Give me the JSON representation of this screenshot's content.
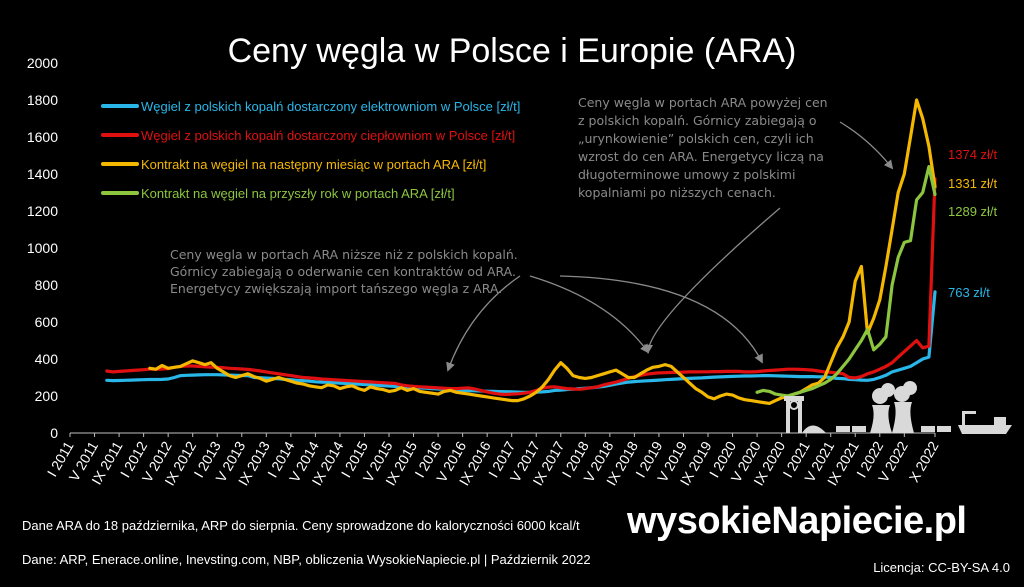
{
  "colors": {
    "background": "#000000",
    "blue": "#29b6e8",
    "red": "#e01010",
    "yellow": "#f5b800",
    "green": "#8cc63f",
    "annotation": "#8a8a8a"
  },
  "chart_data": {
    "type": "line",
    "title": "Ceny węgla w Polsce i Europie (ARA)",
    "xlabel": "",
    "ylabel": "",
    "ylim": [
      0,
      2000
    ],
    "yticks": [
      0,
      200,
      400,
      600,
      800,
      1000,
      1200,
      1400,
      1600,
      1800,
      2000
    ],
    "grid": false,
    "legend_position": "top-left",
    "x_tick_labels": [
      "I 2011",
      "V 2011",
      "IX 2011",
      "I 2012",
      "V 2012",
      "IX 2012",
      "I 2013",
      "V 2013",
      "IX 2013",
      "I 2014",
      "V 2014",
      "IX 2014",
      "I 2015",
      "V 2015",
      "IX 2015",
      "I 2016",
      "V 2016",
      "IX 2016",
      "I 2017",
      "V 2017",
      "IX 2017",
      "I 2018",
      "V 2018",
      "IX 2018",
      "I 2019",
      "V 2019",
      "IX 2019",
      "I 2020",
      "V 2020",
      "IX 2020",
      "I 2021",
      "V 2021",
      "IX 2021",
      "I 2022",
      "V 2022",
      "X 2022"
    ],
    "x_months_start": "2011-01",
    "series": [
      {
        "name": "Węgiel z polskich kopalń dostarczony elektrowniom w Polsce [zł/t]",
        "color": "#29b6e8",
        "end_label": "763 zł/t",
        "values": [
          285,
          283,
          284,
          285,
          286,
          287,
          288,
          289,
          289,
          290,
          292,
          300,
          310,
          312,
          313,
          314,
          315,
          315,
          315,
          314,
          313,
          312,
          311,
          310,
          300,
          299,
          297,
          295,
          293,
          290,
          288,
          285,
          283,
          280,
          277,
          275,
          274,
          272,
          270,
          268,
          266,
          264,
          262,
          260,
          258,
          256,
          254,
          252,
          250,
          248,
          246,
          244,
          242,
          240,
          238,
          236,
          234,
          232,
          230,
          229,
          228,
          227,
          226,
          225,
          224,
          223,
          222,
          221,
          220,
          220,
          221,
          222,
          225,
          230,
          232,
          235,
          237,
          240,
          242,
          245,
          248,
          252,
          258,
          265,
          270,
          275,
          278,
          280,
          282,
          284,
          286,
          288,
          290,
          292,
          294,
          295,
          297,
          298,
          300,
          302,
          303,
          305,
          306,
          307,
          308,
          308,
          309,
          310,
          310,
          309,
          308,
          307,
          306,
          305,
          305,
          305,
          304,
          303,
          300,
          295,
          294,
          290,
          288,
          286,
          285,
          290,
          300,
          312,
          330,
          340,
          350,
          360,
          380,
          400,
          410,
          763
        ]
      },
      {
        "name": "Węgiel z polskich kopalń dostarczony ciepłowniom w Polsce [zł/t]",
        "color": "#e01010",
        "end_label": "1374 zł/t",
        "values": [
          335,
          330,
          333,
          335,
          338,
          340,
          342,
          345,
          345,
          346,
          348,
          355,
          360,
          362,
          362,
          360,
          358,
          356,
          355,
          353,
          350,
          348,
          346,
          344,
          340,
          335,
          330,
          325,
          320,
          315,
          310,
          305,
          300,
          298,
          295,
          292,
          290,
          288,
          286,
          284,
          282,
          280,
          278,
          276,
          274,
          272,
          270,
          268,
          260,
          255,
          252,
          250,
          248,
          246,
          244,
          242,
          240,
          240,
          242,
          244,
          238,
          230,
          222,
          215,
          210,
          208,
          210,
          212,
          215,
          220,
          230,
          242,
          248,
          250,
          245,
          240,
          238,
          236,
          240,
          245,
          250,
          260,
          268,
          275,
          285,
          295,
          305,
          312,
          318,
          322,
          325,
          326,
          327,
          328,
          329,
          330,
          330,
          331,
          331,
          332,
          332,
          333,
          333,
          333,
          330,
          330,
          332,
          335,
          338,
          340,
          342,
          345,
          345,
          344,
          342,
          340,
          335,
          330,
          328,
          325,
          320,
          300,
          298,
          305,
          320,
          330,
          345,
          360,
          380,
          410,
          440,
          470,
          500,
          460,
          470,
          1374
        ]
      },
      {
        "name": "Kontrakt na węgiel na następny miesiąc w portach ARA [zł/t]",
        "color": "#f5b800",
        "end_label": "1331 zł/t",
        "values": [
          350,
          345,
          365,
          350,
          355,
          360,
          375,
          390,
          380,
          370,
          380,
          350,
          330,
          310,
          300,
          310,
          320,
          305,
          295,
          280,
          290,
          300,
          290,
          280,
          270,
          265,
          255,
          250,
          245,
          260,
          255,
          240,
          250,
          255,
          240,
          230,
          250,
          240,
          235,
          225,
          230,
          245,
          230,
          240,
          225,
          220,
          215,
          210,
          225,
          230,
          220,
          215,
          210,
          205,
          200,
          195,
          190,
          185,
          180,
          175,
          175,
          185,
          200,
          220,
          250,
          290,
          340,
          380,
          350,
          310,
          300,
          295,
          300,
          310,
          320,
          330,
          340,
          320,
          300,
          300,
          320,
          340,
          355,
          360,
          370,
          360,
          330,
          300,
          270,
          240,
          220,
          195,
          185,
          200,
          210,
          205,
          190,
          180,
          175,
          170,
          165,
          160,
          175,
          190,
          200,
          210,
          220,
          240,
          260,
          270,
          300,
          380,
          460,
          520,
          600,
          820,
          900,
          540,
          620,
          720,
          900,
          1100,
          1300,
          1400,
          1600,
          1800,
          1700,
          1550,
          1331
        ]
      },
      {
        "name": "Kontrakt na węgiel na przyszły rok w portach ARA [zł/t]",
        "color": "#8cc63f",
        "end_label": "1289 zł/t",
        "values": [
          null,
          null,
          null,
          null,
          null,
          null,
          null,
          null,
          null,
          null,
          null,
          null,
          null,
          null,
          null,
          null,
          null,
          null,
          null,
          null,
          null,
          null,
          null,
          null,
          null,
          null,
          null,
          null,
          null,
          null,
          null,
          null,
          null,
          null,
          null,
          null,
          null,
          null,
          null,
          null,
          null,
          null,
          null,
          null,
          null,
          null,
          null,
          null,
          null,
          null,
          null,
          null,
          null,
          null,
          null,
          null,
          null,
          null,
          null,
          null,
          null,
          null,
          null,
          null,
          null,
          null,
          null,
          null,
          null,
          null,
          null,
          null,
          null,
          null,
          null,
          null,
          null,
          null,
          null,
          null,
          null,
          null,
          null,
          null,
          null,
          null,
          null,
          null,
          null,
          null,
          null,
          null,
          null,
          null,
          null,
          null,
          null,
          null,
          null,
          null,
          null,
          null,
          null,
          null,
          220,
          230,
          225,
          210,
          205,
          200,
          210,
          220,
          230,
          240,
          255,
          270,
          290,
          320,
          360,
          400,
          450,
          500,
          560,
          450,
          480,
          520,
          800,
          950,
          1030,
          1040,
          1260,
          1300,
          1440,
          1289
        ]
      }
    ],
    "annotations": [
      "Ceny węgla w portach ARA niższe niż z polskich kopalń. Górnicy zabiegają o oderwanie cen kontraktów od ARA. Energetycy zwiększają import tańszego węgla z ARA.",
      "Ceny węgla w portach ARA powyżej cen z polskich kopalń. Górnicy zabiegają o „urynkowienie” polskich cen, czyli ich wzrost do cen ARA. Energetycy liczą na długoterminowe umowy z polskimi kopalniami po niższych cenach."
    ]
  },
  "annotation_left_lines": [
    "Ceny węgla w portach ARA niższe niż z polskich kopalń.",
    "Górnicy zabiegają o oderwanie cen kontraktów od ARA.",
    "Energetycy zwiększają import tańszego węgla z ARA."
  ],
  "annotation_right_lines": [
    "Ceny węgla w portach ARA powyżej cen",
    "z polskich kopalń. Górnicy zabiegają o",
    "„urynkowienie” polskich cen, czyli ich",
    "wzrost do cen ARA. Energetycy liczą na",
    "długoterminowe umowy z polskimi",
    "kopalniami po niższych cenach."
  ],
  "footer": {
    "note": "Dane ARA do 18 października, ARP do sierpnia. Ceny sprowadzone do kaloryczności 6000 kcal/t",
    "sources": "Dane: ARP, Enerace.online, Inevsting.com, NBP, obliczenia WysokieNapiecie.pl |  Październik 2022",
    "brand": "wysokieNapiecie.pl",
    "license": "Licencja: CC-BY-SA 4.0"
  }
}
